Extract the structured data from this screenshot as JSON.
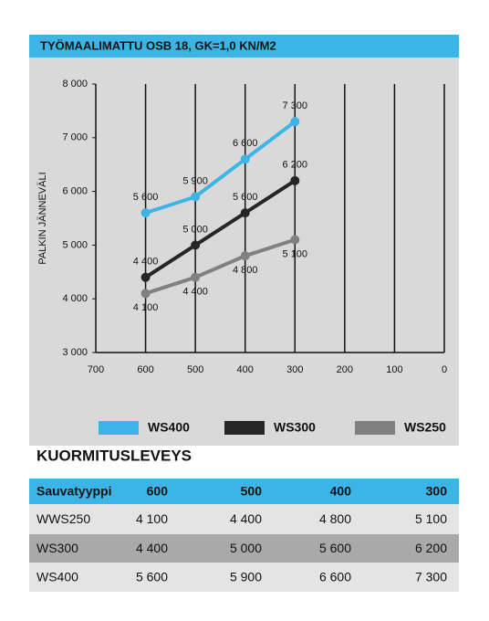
{
  "chart_data": {
    "type": "line",
    "title": "TYÖMAALIMATTU  OSB 18, GK=1,0 KN/M2",
    "ylabel": "PALKIN JÄNNEVÄLI",
    "xlabel": "KUORMITUSLEVEYS",
    "x": [
      600,
      500,
      400,
      300
    ],
    "series": [
      {
        "name": "WS400",
        "color": "#3cb5e6",
        "values": [
          5600,
          5900,
          6600,
          7300
        ],
        "value_labels": [
          "5 600",
          "5 900",
          "6 600",
          "7 300"
        ]
      },
      {
        "name": "WS300",
        "color": "#262626",
        "values": [
          4400,
          5000,
          5600,
          6200
        ],
        "value_labels": [
          "4 400",
          "5 000",
          "5 600",
          "6 200"
        ]
      },
      {
        "name": "WS250",
        "color": "#808080",
        "values": [
          4100,
          4400,
          4800,
          5100
        ],
        "value_labels": [
          "4 100",
          "4 400",
          "4 800",
          "5 100"
        ]
      }
    ],
    "xlim": [
      700,
      0
    ],
    "xticks": [
      700,
      600,
      500,
      400,
      300,
      200,
      100,
      0
    ],
    "ylim": [
      3000,
      8000
    ],
    "yticks": [
      {
        "value": 3000,
        "label": "3 000"
      },
      {
        "value": 4000,
        "label": "4 000"
      },
      {
        "value": 5000,
        "label": "5 000"
      },
      {
        "value": 6000,
        "label": "6 000"
      },
      {
        "value": 7000,
        "label": "7 000"
      },
      {
        "value": 8000,
        "label": "8 000"
      }
    ],
    "grid": true
  },
  "table": {
    "header": [
      "Sauvatyyppi",
      "600",
      "500",
      "400",
      "300"
    ],
    "rows": [
      [
        "WWS250",
        "4 100",
        "4 400",
        "4 800",
        "5 100"
      ],
      [
        "WS300",
        "4 400",
        "5 000",
        "5 600",
        "6 200"
      ],
      [
        "WS400",
        "5 600",
        "5 900",
        "6 600",
        "7 300"
      ]
    ]
  }
}
